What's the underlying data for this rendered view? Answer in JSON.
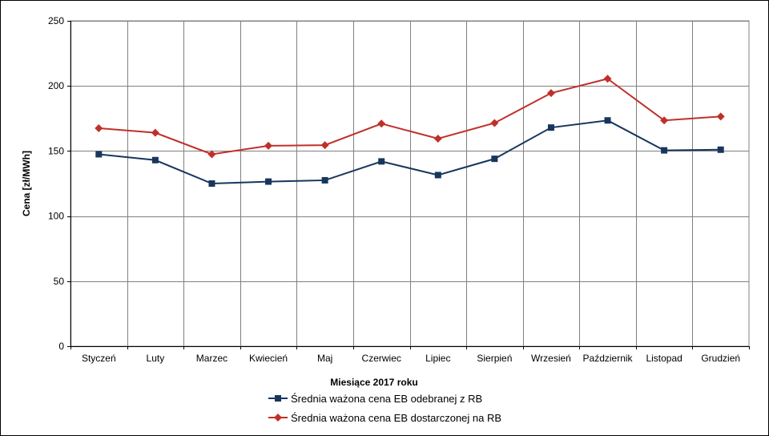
{
  "chart_data": {
    "type": "line",
    "title": "",
    "xlabel": "Miesiące 2017  roku",
    "ylabel": "Cena [zł/MWh]",
    "ylim": [
      0,
      250
    ],
    "yticks": [
      0,
      50,
      100,
      150,
      200,
      250
    ],
    "grid": true,
    "legend_position": "bottom",
    "categories": [
      "Styczeń",
      "Luty",
      "Marzec",
      "Kwiecień",
      "Maj",
      "Czerwiec",
      "Lipiec",
      "Sierpień",
      "Wrzesień",
      "Październik",
      "Listopad",
      "Grudzień"
    ],
    "series": [
      {
        "name": "Średnia ważona cena EB odebranej z RB",
        "color": "#17365d",
        "marker": "square",
        "values": [
          147.5,
          143,
          125,
          126.5,
          127.5,
          142,
          131.5,
          144,
          168,
          173.5,
          150.5,
          151
        ]
      },
      {
        "name": "Średnia ważona cena EB dostarczonej na RB",
        "color": "#c0302a",
        "marker": "diamond",
        "values": [
          167.5,
          164,
          147.5,
          154,
          154.5,
          171,
          159.5,
          171.5,
          194.5,
          205.5,
          173.5,
          176.5
        ]
      }
    ]
  }
}
